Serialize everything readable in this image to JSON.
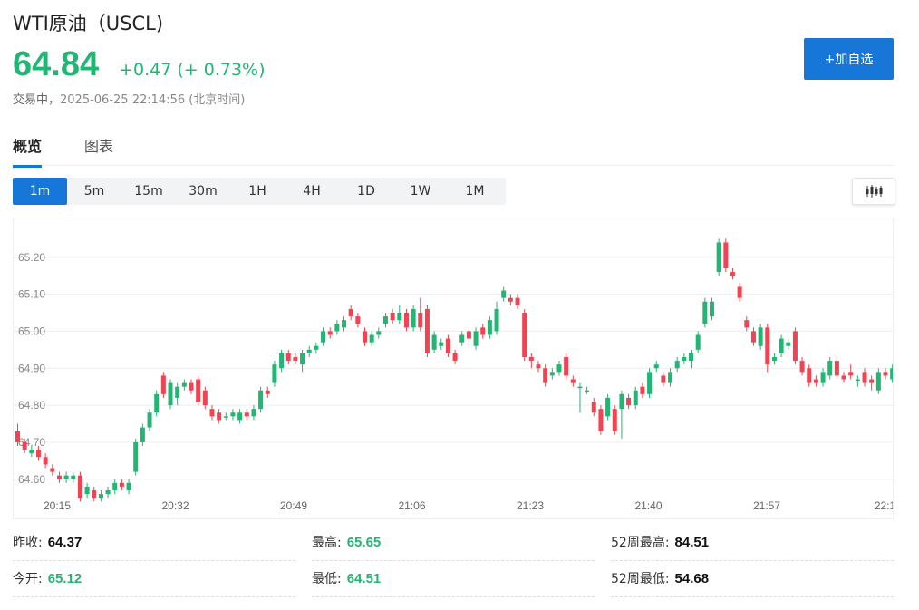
{
  "header": {
    "title": "WTI原油（USCL)",
    "price": "64.84",
    "change": "+0.47 (+ 0.73%)",
    "status_label": "交易中，",
    "timestamp": "2025-06-25 22:14:56",
    "timezone": "(北京时间)",
    "watch_button": "+加自选"
  },
  "tabs": [
    {
      "label": "概览",
      "active": true
    },
    {
      "label": "图表",
      "active": false
    }
  ],
  "intervals": [
    {
      "label": "1m",
      "active": true
    },
    {
      "label": "5m",
      "active": false
    },
    {
      "label": "15m",
      "active": false
    },
    {
      "label": "30m",
      "active": false
    },
    {
      "label": "1H",
      "active": false
    },
    {
      "label": "4H",
      "active": false
    },
    {
      "label": "1D",
      "active": false
    },
    {
      "label": "1W",
      "active": false
    },
    {
      "label": "1M",
      "active": false
    }
  ],
  "chart_type_icon": "candlestick-icon",
  "colors": {
    "up": "#22b573",
    "down": "#f04452",
    "accent": "#1677d9"
  },
  "chart_data": {
    "type": "candlestick",
    "y_ticks": [
      "65.20",
      "65.10",
      "65.00",
      "64.90",
      "64.80",
      "64.70",
      "64.60"
    ],
    "x_ticks": [
      "20:15",
      "20:32",
      "20:49",
      "21:06",
      "21:23",
      "21:40",
      "21:57",
      "22:1"
    ],
    "ylim": [
      64.57,
      65.29
    ],
    "grid": true,
    "candles": [
      [
        64.73,
        64.7,
        64.75,
        64.69
      ],
      [
        64.7,
        64.68,
        64.71,
        64.67
      ],
      [
        64.67,
        64.68,
        64.69,
        64.66
      ],
      [
        64.68,
        64.66,
        64.69,
        64.65
      ],
      [
        64.66,
        64.64,
        64.67,
        64.63
      ],
      [
        64.63,
        64.62,
        64.64,
        64.61
      ],
      [
        64.61,
        64.6,
        64.62,
        64.59
      ],
      [
        64.6,
        64.61,
        64.62,
        64.59
      ],
      [
        64.6,
        64.61,
        64.62,
        64.59
      ],
      [
        64.61,
        64.55,
        64.62,
        64.54
      ],
      [
        64.56,
        64.58,
        64.59,
        64.55
      ],
      [
        64.57,
        64.55,
        64.58,
        64.54
      ],
      [
        64.55,
        64.56,
        64.57,
        64.54
      ],
      [
        64.56,
        64.57,
        64.58,
        64.55
      ],
      [
        64.57,
        64.59,
        64.6,
        64.56
      ],
      [
        64.59,
        64.58,
        64.6,
        64.57
      ],
      [
        64.57,
        64.59,
        64.6,
        64.56
      ],
      [
        64.62,
        64.7,
        64.71,
        64.61
      ],
      [
        64.7,
        64.74,
        64.75,
        64.69
      ],
      [
        64.74,
        64.78,
        64.79,
        64.73
      ],
      [
        64.78,
        64.83,
        64.84,
        64.77
      ],
      [
        64.88,
        64.83,
        64.89,
        64.82
      ],
      [
        64.8,
        64.86,
        64.87,
        64.79
      ],
      [
        64.82,
        64.85,
        64.86,
        64.8
      ],
      [
        64.85,
        64.86,
        64.87,
        64.84
      ],
      [
        64.86,
        64.84,
        64.87,
        64.83
      ],
      [
        64.87,
        64.81,
        64.88,
        64.8
      ],
      [
        64.84,
        64.8,
        64.85,
        64.79
      ],
      [
        64.79,
        64.77,
        64.8,
        64.76
      ],
      [
        64.78,
        64.76,
        64.79,
        64.75
      ],
      [
        64.77,
        64.77,
        64.78,
        64.76
      ],
      [
        64.77,
        64.78,
        64.79,
        64.76
      ],
      [
        64.76,
        64.78,
        64.79,
        64.75
      ],
      [
        64.78,
        64.77,
        64.79,
        64.76
      ],
      [
        64.77,
        64.79,
        64.8,
        64.76
      ],
      [
        64.79,
        64.84,
        64.85,
        64.78
      ],
      [
        64.84,
        64.83,
        64.85,
        64.82
      ],
      [
        64.86,
        64.91,
        64.92,
        64.85
      ],
      [
        64.9,
        64.94,
        64.95,
        64.89
      ],
      [
        64.94,
        64.92,
        64.95,
        64.91
      ],
      [
        64.93,
        64.92,
        64.94,
        64.91
      ],
      [
        64.91,
        64.94,
        64.95,
        64.89
      ],
      [
        64.94,
        64.95,
        64.96,
        64.93
      ],
      [
        64.95,
        64.96,
        64.97,
        64.94
      ],
      [
        64.97,
        65.0,
        65.01,
        64.96
      ],
      [
        65.0,
        64.99,
        65.01,
        64.98
      ],
      [
        65.0,
        65.02,
        65.03,
        64.99
      ],
      [
        65.01,
        65.03,
        65.04,
        65.0
      ],
      [
        65.06,
        65.04,
        65.07,
        65.03
      ],
      [
        65.04,
        65.02,
        65.05,
        65.01
      ],
      [
        65.0,
        64.97,
        65.01,
        64.96
      ],
      [
        64.97,
        64.99,
        65.0,
        64.96
      ],
      [
        64.99,
        65.0,
        65.01,
        64.98
      ],
      [
        65.02,
        65.04,
        65.05,
        65.01
      ],
      [
        65.05,
        65.03,
        65.06,
        65.02
      ],
      [
        65.03,
        65.05,
        65.07,
        65.02
      ],
      [
        65.05,
        65.01,
        65.06,
        65.0
      ],
      [
        65.01,
        65.06,
        65.07,
        65.0
      ],
      [
        65.05,
        65.01,
        65.09,
        65.0
      ],
      [
        65.06,
        64.94,
        65.07,
        64.93
      ],
      [
        64.95,
        64.99,
        65.0,
        64.94
      ],
      [
        64.96,
        64.97,
        64.98,
        64.95
      ],
      [
        64.98,
        64.94,
        64.99,
        64.93
      ],
      [
        64.94,
        64.92,
        64.95,
        64.91
      ],
      [
        64.97,
        64.99,
        65.0,
        64.96
      ],
      [
        65.0,
        64.98,
        65.01,
        64.96
      ],
      [
        64.96,
        65.0,
        65.01,
        64.95
      ],
      [
        65.01,
        64.99,
        65.02,
        64.98
      ],
      [
        64.99,
        65.03,
        65.04,
        64.98
      ],
      [
        65.0,
        65.06,
        65.08,
        64.99
      ],
      [
        65.09,
        65.11,
        65.12,
        65.08
      ],
      [
        65.09,
        65.08,
        65.1,
        65.07
      ],
      [
        65.09,
        65.07,
        65.1,
        65.06
      ],
      [
        65.05,
        64.93,
        65.06,
        64.92
      ],
      [
        64.93,
        64.92,
        64.94,
        64.9
      ],
      [
        64.91,
        64.9,
        64.92,
        64.89
      ],
      [
        64.9,
        64.86,
        64.91,
        64.85
      ],
      [
        64.88,
        64.89,
        64.9,
        64.87
      ],
      [
        64.89,
        64.91,
        64.92,
        64.88
      ],
      [
        64.93,
        64.88,
        64.94,
        64.87
      ],
      [
        64.87,
        64.86,
        64.88,
        64.85
      ],
      [
        64.85,
        64.85,
        64.86,
        64.78
      ],
      [
        64.84,
        64.84,
        64.85,
        64.83
      ],
      [
        64.81,
        64.78,
        64.82,
        64.77
      ],
      [
        64.79,
        64.73,
        64.8,
        64.72
      ],
      [
        64.77,
        64.82,
        64.83,
        64.76
      ],
      [
        64.79,
        64.73,
        64.8,
        64.72
      ],
      [
        64.79,
        64.83,
        64.84,
        64.71
      ],
      [
        64.82,
        64.8,
        64.83,
        64.79
      ],
      [
        64.8,
        64.84,
        64.85,
        64.79
      ],
      [
        64.85,
        64.83,
        64.86,
        64.82
      ],
      [
        64.83,
        64.89,
        64.9,
        64.82
      ],
      [
        64.9,
        64.91,
        64.92,
        64.89
      ],
      [
        64.88,
        64.86,
        64.89,
        64.85
      ],
      [
        64.86,
        64.89,
        64.9,
        64.85
      ],
      [
        64.9,
        64.92,
        64.93,
        64.89
      ],
      [
        64.92,
        64.93,
        64.94,
        64.91
      ],
      [
        64.92,
        64.94,
        64.95,
        64.9
      ],
      [
        64.95,
        64.99,
        65.0,
        64.94
      ],
      [
        65.02,
        65.08,
        65.09,
        65.01
      ],
      [
        65.04,
        65.08,
        65.09,
        65.03
      ],
      [
        65.16,
        65.24,
        65.25,
        65.15
      ],
      [
        65.24,
        65.17,
        65.25,
        65.16
      ],
      [
        65.16,
        65.15,
        65.17,
        65.14
      ],
      [
        65.12,
        65.09,
        65.13,
        65.08
      ],
      [
        65.03,
        65.01,
        65.04,
        65.0
      ],
      [
        65.0,
        64.97,
        65.01,
        64.96
      ],
      [
        64.96,
        65.01,
        65.02,
        64.95
      ],
      [
        65.01,
        64.91,
        65.02,
        64.89
      ],
      [
        64.92,
        64.93,
        64.94,
        64.91
      ],
      [
        64.94,
        64.98,
        64.99,
        64.93
      ],
      [
        64.96,
        64.97,
        64.98,
        64.95
      ],
      [
        65.0,
        64.92,
        65.01,
        64.91
      ],
      [
        64.92,
        64.89,
        64.93,
        64.88
      ],
      [
        64.9,
        64.86,
        64.91,
        64.85
      ],
      [
        64.87,
        64.86,
        64.88,
        64.85
      ],
      [
        64.86,
        64.89,
        64.9,
        64.85
      ],
      [
        64.88,
        64.92,
        64.93,
        64.87
      ],
      [
        64.92,
        64.88,
        64.93,
        64.87
      ],
      [
        64.88,
        64.87,
        64.89,
        64.86
      ],
      [
        64.89,
        64.88,
        64.91,
        64.87
      ],
      [
        64.87,
        64.87,
        64.88,
        64.85
      ],
      [
        64.89,
        64.86,
        64.9,
        64.85
      ],
      [
        64.87,
        64.86,
        64.88,
        64.84
      ],
      [
        64.84,
        64.89,
        64.9,
        64.83
      ],
      [
        64.89,
        64.88,
        64.9,
        64.87
      ],
      [
        64.87,
        64.9,
        64.91,
        64.86
      ],
      [
        64.9,
        64.91,
        64.92,
        64.89
      ],
      [
        64.91,
        64.89,
        64.93,
        64.88
      ],
      [
        64.89,
        64.85,
        64.9,
        64.84
      ],
      [
        64.85,
        64.81,
        64.86,
        64.8
      ],
      [
        64.81,
        64.77,
        64.82,
        64.76
      ],
      [
        64.83,
        64.82,
        64.84,
        64.79
      ]
    ]
  },
  "stats": [
    {
      "label": "昨收:",
      "value": "64.37",
      "tone": "dark"
    },
    {
      "label": "最高:",
      "value": "65.65",
      "tone": "green"
    },
    {
      "label": "52周最高:",
      "value": "84.51",
      "tone": "dark"
    },
    {
      "label": "今开:",
      "value": "65.12",
      "tone": "green"
    },
    {
      "label": "最低:",
      "value": "64.51",
      "tone": "green"
    },
    {
      "label": "52周最低:",
      "value": "54.68",
      "tone": "dark"
    }
  ]
}
